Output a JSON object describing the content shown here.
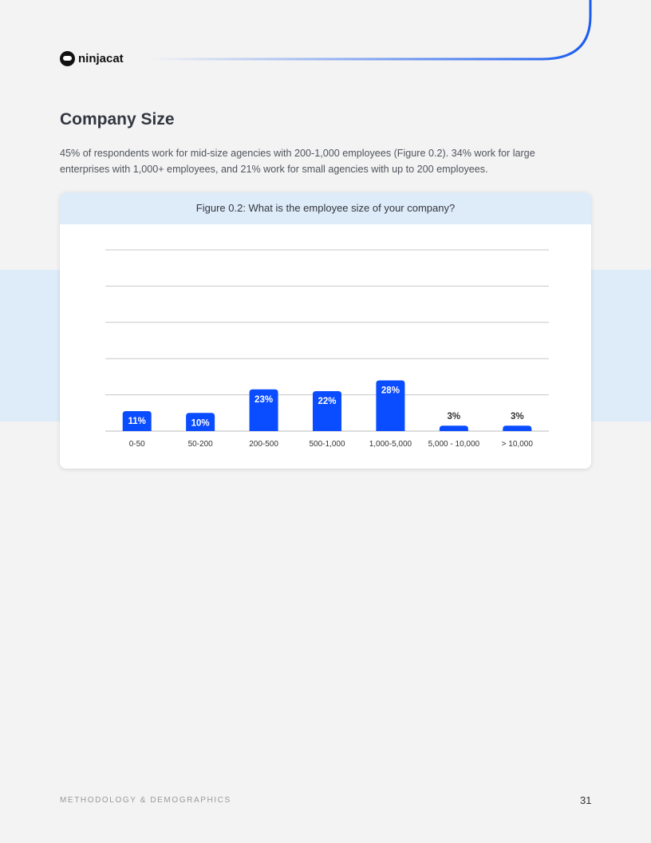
{
  "header": {
    "logo_text": "ninjacat"
  },
  "section": {
    "title": "Company Size",
    "intro": "45% of respondents work for mid-size agencies with 200-1,000 employees (Figure 0.2). 34% work for large enterprises with 1,000+ employees, and 21% work for small agencies with up to 200 employees."
  },
  "chart_data": {
    "type": "bar",
    "title": "Figure 0.2: What is the employee size of your company?",
    "categories": [
      "0-50",
      "50-200",
      "200-500",
      "500-1,000",
      "1,000-5,000",
      "5,000 - 10,000",
      "> 10,000"
    ],
    "values": [
      11,
      10,
      23,
      22,
      28,
      3,
      3
    ],
    "data_labels": [
      "11%",
      "10%",
      "23%",
      "22%",
      "28%",
      "3%",
      "3%"
    ],
    "ylim": [
      0,
      100
    ],
    "yticks": [
      0,
      20,
      40,
      60,
      80,
      100
    ],
    "grid": true,
    "bar_color": "#0a4cff",
    "xlabel": "",
    "ylabel": ""
  },
  "footer": {
    "section": "METHODOLOGY & DEMOGRAPHICS",
    "page_number": "31"
  },
  "colors": {
    "accent": "#1a5cf0",
    "panel": "#deebf8"
  }
}
